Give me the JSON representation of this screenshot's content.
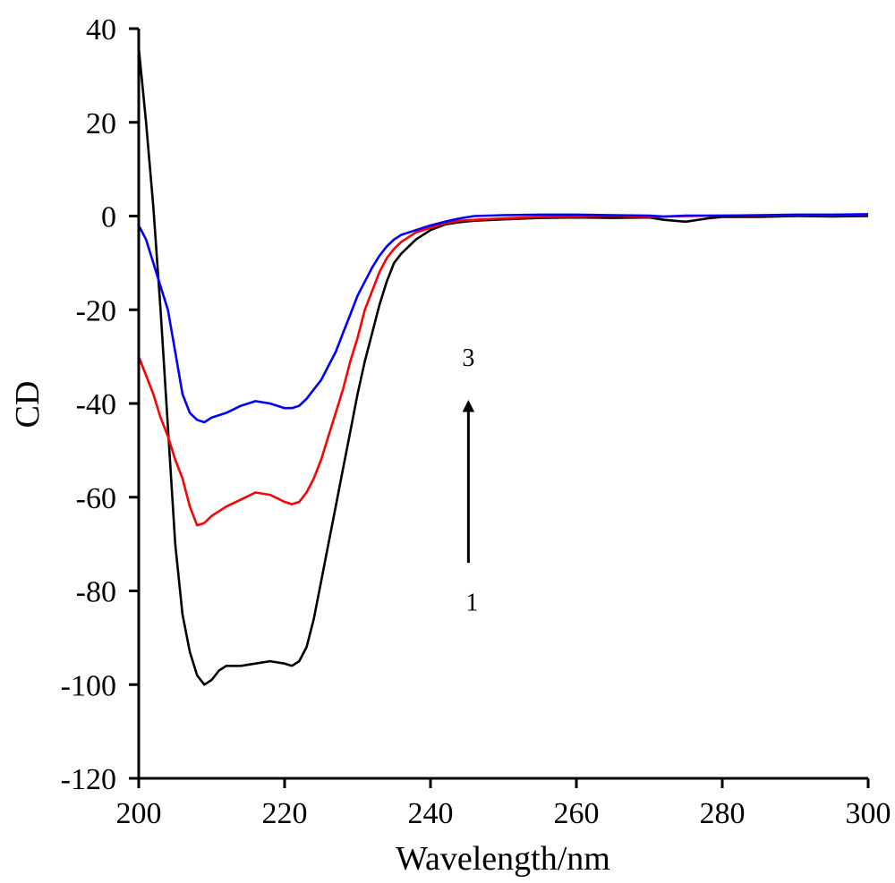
{
  "chart_data": {
    "type": "line",
    "title": "",
    "xlabel": "Wavelength/nm",
    "ylabel": "CD",
    "xlim": [
      200,
      300
    ],
    "ylim": [
      -120,
      40
    ],
    "x_ticks": [
      200,
      220,
      240,
      260,
      280,
      300
    ],
    "y_ticks": [
      40,
      20,
      0,
      -20,
      -40,
      -60,
      -80,
      -100,
      -120
    ],
    "grid": false,
    "legend": "none",
    "series": [
      {
        "color": "#000000",
        "points": [
          [
            200,
            36
          ],
          [
            201,
            20
          ],
          [
            202,
            2
          ],
          [
            203,
            -20
          ],
          [
            204,
            -45
          ],
          [
            205,
            -70
          ],
          [
            206,
            -85
          ],
          [
            207,
            -93
          ],
          [
            208,
            -98
          ],
          [
            209,
            -100
          ],
          [
            210,
            -99
          ],
          [
            211,
            -97
          ],
          [
            212,
            -96
          ],
          [
            214,
            -96
          ],
          [
            216,
            -95.5
          ],
          [
            218,
            -95
          ],
          [
            220,
            -95.5
          ],
          [
            221,
            -96
          ],
          [
            222,
            -95
          ],
          [
            223,
            -92
          ],
          [
            224,
            -86
          ],
          [
            225,
            -78
          ],
          [
            226,
            -70
          ],
          [
            227,
            -62
          ],
          [
            228,
            -54
          ],
          [
            229,
            -46
          ],
          [
            230,
            -38
          ],
          [
            231,
            -31
          ],
          [
            232,
            -25
          ],
          [
            233,
            -19
          ],
          [
            234,
            -14
          ],
          [
            235,
            -10
          ],
          [
            236,
            -8
          ],
          [
            238,
            -5
          ],
          [
            240,
            -3
          ],
          [
            242,
            -1.8
          ],
          [
            244,
            -1.3
          ],
          [
            246,
            -1
          ],
          [
            250,
            -0.7
          ],
          [
            255,
            -0.4
          ],
          [
            260,
            -0.3
          ],
          [
            265,
            -0.4
          ],
          [
            270,
            -0.3
          ],
          [
            272,
            -0.8
          ],
          [
            275,
            -1.2
          ],
          [
            278,
            -0.5
          ],
          [
            280,
            -0.2
          ],
          [
            285,
            -0.2
          ],
          [
            290,
            0
          ],
          [
            295,
            -0.1
          ],
          [
            300,
            0
          ]
        ]
      },
      {
        "color": "#ff0000",
        "points": [
          [
            200,
            -30
          ],
          [
            201,
            -34
          ],
          [
            202,
            -38
          ],
          [
            203,
            -43
          ],
          [
            204,
            -47
          ],
          [
            205,
            -52
          ],
          [
            206,
            -56
          ],
          [
            207,
            -62
          ],
          [
            208,
            -66
          ],
          [
            209,
            -65.5
          ],
          [
            210,
            -64
          ],
          [
            212,
            -62
          ],
          [
            214,
            -60.5
          ],
          [
            216,
            -59
          ],
          [
            218,
            -59.5
          ],
          [
            220,
            -61
          ],
          [
            221,
            -61.5
          ],
          [
            222,
            -61
          ],
          [
            223,
            -59
          ],
          [
            224,
            -56
          ],
          [
            225,
            -52
          ],
          [
            226,
            -47
          ],
          [
            227,
            -42
          ],
          [
            228,
            -37
          ],
          [
            229,
            -31
          ],
          [
            230,
            -26
          ],
          [
            231,
            -20
          ],
          [
            232,
            -16
          ],
          [
            233,
            -12
          ],
          [
            234,
            -9
          ],
          [
            235,
            -7
          ],
          [
            236,
            -5.5
          ],
          [
            238,
            -3.5
          ],
          [
            240,
            -2.5
          ],
          [
            242,
            -1.5
          ],
          [
            244,
            -1
          ],
          [
            246,
            -0.8
          ],
          [
            250,
            -0.5
          ],
          [
            255,
            -0.2
          ],
          [
            260,
            -0.1
          ],
          [
            265,
            0.1
          ],
          [
            270,
            -0.2
          ],
          [
            275,
            0
          ],
          [
            280,
            0.1
          ],
          [
            285,
            0.1
          ],
          [
            290,
            0.2
          ],
          [
            295,
            0.2
          ],
          [
            300,
            0.3
          ]
        ]
      },
      {
        "color": "#0000ff",
        "points": [
          [
            200,
            -2
          ],
          [
            201,
            -5
          ],
          [
            202,
            -10
          ],
          [
            203,
            -15
          ],
          [
            204,
            -20
          ],
          [
            205,
            -29
          ],
          [
            206,
            -38
          ],
          [
            207,
            -42
          ],
          [
            208,
            -43.5
          ],
          [
            209,
            -44
          ],
          [
            210,
            -43
          ],
          [
            212,
            -42
          ],
          [
            214,
            -40.5
          ],
          [
            216,
            -39.5
          ],
          [
            218,
            -40
          ],
          [
            220,
            -41
          ],
          [
            221,
            -41
          ],
          [
            222,
            -40.5
          ],
          [
            223,
            -39
          ],
          [
            224,
            -37
          ],
          [
            225,
            -35
          ],
          [
            226,
            -32
          ],
          [
            227,
            -29
          ],
          [
            228,
            -25
          ],
          [
            229,
            -21
          ],
          [
            230,
            -17
          ],
          [
            231,
            -14
          ],
          [
            232,
            -11
          ],
          [
            233,
            -8.5
          ],
          [
            234,
            -6.5
          ],
          [
            235,
            -5
          ],
          [
            236,
            -4
          ],
          [
            238,
            -3
          ],
          [
            240,
            -2
          ],
          [
            242,
            -1.2
          ],
          [
            244,
            -0.5
          ],
          [
            246,
            0
          ],
          [
            250,
            0.2
          ],
          [
            255,
            0.3
          ],
          [
            260,
            0.3
          ],
          [
            265,
            0.2
          ],
          [
            270,
            0.1
          ],
          [
            272,
            -0.1
          ],
          [
            275,
            0.1
          ],
          [
            280,
            0.1
          ],
          [
            285,
            0.2
          ],
          [
            290,
            0.3
          ],
          [
            295,
            0.3
          ],
          [
            300,
            0.4
          ]
        ]
      }
    ],
    "annotations": {
      "arrow": {
        "x": 245.2,
        "y_from": -74,
        "y_to": -39
      },
      "start_label": {
        "text": "1",
        "x": 245.2,
        "y": -80
      },
      "end_label": {
        "text": "3",
        "x": 245.2,
        "y": -35
      }
    }
  }
}
